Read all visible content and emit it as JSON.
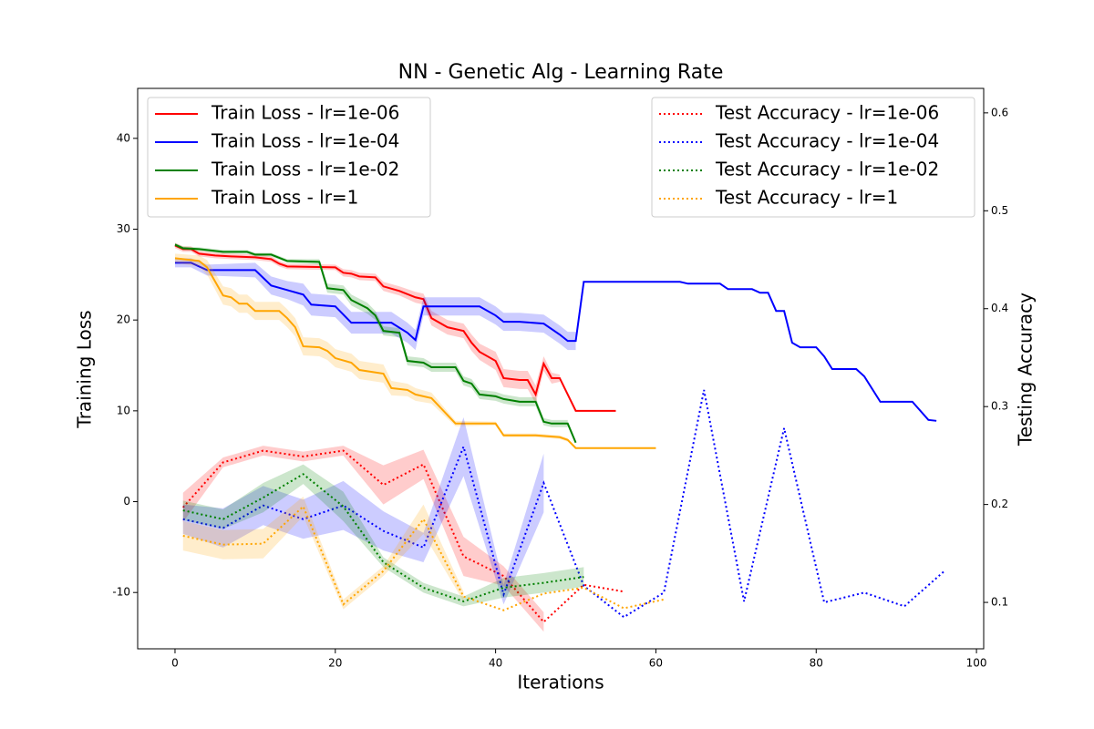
{
  "chart_data": {
    "type": "line",
    "title": "NN - Genetic Alg - Learning Rate",
    "xlabel": "Iterations",
    "ylabel": "Training Loss",
    "y2label": "Testing Accuracy",
    "xlim": [
      -4.66,
      100.9
    ],
    "ylim": [
      -16.2,
      45.5
    ],
    "y2lim": [
      0.0526,
      0.625
    ],
    "xticks": [
      0,
      20,
      40,
      60,
      80,
      100
    ],
    "yticks": [
      -10,
      0,
      10,
      20,
      30,
      40
    ],
    "y2ticks": [
      0.1,
      0.2,
      0.3,
      0.4,
      0.5,
      0.6
    ],
    "legend": [
      "upper left",
      "upper right"
    ],
    "series": [
      {
        "name": "Train Loss - lr=1e-06",
        "color": "red",
        "linestyle": "solid",
        "x": [
          0,
          1,
          2,
          3,
          5,
          7,
          10,
          12,
          13,
          14,
          20,
          21,
          22,
          23,
          25,
          26,
          28,
          30,
          31,
          32,
          34,
          36,
          37,
          38,
          40,
          41,
          43,
          44,
          45,
          46,
          47,
          48,
          50,
          55
        ],
        "values": [
          28.2,
          27.8,
          27.8,
          27.3,
          27.1,
          27.0,
          26.9,
          26.7,
          26.2,
          25.9,
          25.8,
          25.2,
          25.1,
          24.8,
          24.7,
          23.7,
          23.2,
          22.5,
          22.3,
          20.2,
          19.2,
          18.8,
          17.5,
          16.5,
          15.5,
          13.6,
          13.4,
          13.4,
          11.8,
          15.2,
          13.6,
          13.6,
          10.0,
          10.0
        ],
        "spread": [
          0.3,
          0.3,
          0.3,
          0.3,
          0.3,
          0.3,
          0.3,
          0.3,
          0.3,
          0.3,
          0.3,
          0.4,
          0.4,
          0.4,
          0.4,
          0.5,
          0.5,
          0.6,
          0.6,
          0.8,
          0.8,
          0.8,
          0.9,
          0.9,
          1.0,
          1.0,
          1.0,
          1.0,
          1.0,
          0.8,
          0.6,
          0.4,
          null,
          null
        ]
      },
      {
        "name": "Train Loss - lr=1e-04",
        "color": "blue",
        "linestyle": "solid",
        "x": [
          0,
          2,
          4,
          10,
          12,
          14,
          16,
          17,
          20,
          22,
          27,
          29,
          30,
          31,
          38,
          40,
          41,
          43,
          46,
          48,
          49,
          50,
          51,
          63,
          64,
          68,
          69,
          72,
          73,
          74,
          75,
          76,
          77,
          78,
          80,
          81,
          82,
          85,
          86,
          88,
          92,
          94,
          95
        ],
        "values": [
          26.3,
          26.3,
          25.5,
          25.5,
          23.8,
          23.3,
          22.8,
          21.7,
          21.5,
          19.7,
          19.7,
          18.6,
          17.8,
          21.5,
          21.5,
          20.5,
          19.8,
          19.8,
          19.6,
          18.4,
          17.7,
          17.7,
          24.2,
          24.2,
          24.0,
          24.0,
          23.4,
          23.4,
          23.0,
          23.0,
          21.0,
          21.0,
          17.5,
          17.0,
          17.0,
          16.0,
          14.6,
          14.6,
          13.8,
          11.0,
          11.0,
          9.0,
          8.9
        ],
        "spread": [
          0.5,
          0.5,
          0.6,
          0.8,
          1.0,
          1.0,
          1.2,
          1.2,
          1.2,
          1.2,
          1.2,
          1.1,
          1.1,
          1.0,
          1.0,
          1.0,
          1.0,
          1.0,
          1.0,
          1.0,
          1.0,
          1.0,
          null,
          null,
          null,
          null,
          null,
          null,
          null,
          null,
          null,
          null,
          null,
          null,
          null,
          null,
          null,
          null,
          null,
          null,
          null,
          null,
          null
        ]
      },
      {
        "name": "Train Loss - lr=1e-02",
        "color": "green",
        "linestyle": "solid",
        "x": [
          0,
          1,
          3,
          6,
          9,
          10,
          12,
          14,
          18,
          19,
          21,
          22,
          24,
          25,
          26,
          28,
          29,
          31,
          32,
          35,
          36,
          37,
          38,
          40,
          41,
          43,
          45,
          46,
          47,
          49,
          50
        ],
        "values": [
          28.3,
          27.9,
          27.8,
          27.5,
          27.5,
          27.2,
          27.2,
          26.5,
          26.4,
          23.5,
          23.3,
          22.2,
          21.3,
          20.5,
          18.8,
          18.6,
          15.5,
          15.3,
          14.8,
          14.8,
          13.3,
          13.0,
          11.8,
          11.6,
          11.3,
          11.0,
          11.0,
          8.8,
          8.6,
          8.6,
          6.5
        ],
        "spread": [
          0.2,
          0.2,
          0.2,
          0.2,
          0.2,
          0.2,
          0.2,
          0.2,
          0.3,
          0.5,
          0.5,
          0.6,
          0.6,
          0.5,
          0.5,
          0.5,
          0.5,
          0.5,
          0.5,
          0.5,
          0.5,
          0.5,
          0.5,
          0.5,
          0.5,
          0.5,
          0.5,
          0.4,
          0.4,
          0.4,
          null
        ]
      },
      {
        "name": "Train Loss - lr=1",
        "color": "orange",
        "linestyle": "solid",
        "x": [
          0,
          3,
          4,
          6,
          7,
          8,
          9,
          10,
          13,
          14,
          15,
          16,
          18,
          19,
          20,
          22,
          23,
          26,
          27,
          29,
          30,
          32,
          35,
          40,
          41,
          45,
          48,
          49,
          50,
          60
        ],
        "values": [
          26.8,
          26.5,
          25.8,
          22.7,
          22.5,
          21.8,
          21.8,
          21.0,
          21.0,
          20.2,
          19.2,
          17.1,
          17.0,
          16.6,
          15.8,
          15.3,
          14.5,
          14.1,
          12.5,
          12.3,
          11.8,
          11.4,
          8.6,
          8.6,
          7.3,
          7.3,
          7.1,
          6.8,
          5.9,
          5.9
        ],
        "spread": [
          0.5,
          0.6,
          0.8,
          1.0,
          1.0,
          1.0,
          1.0,
          1.0,
          1.0,
          1.0,
          1.0,
          1.0,
          1.0,
          1.0,
          1.0,
          1.0,
          1.0,
          1.0,
          0.8,
          0.7,
          0.7,
          0.6,
          0.3,
          0.2,
          0.2,
          0.2,
          0.2,
          0.2,
          null,
          null
        ]
      },
      {
        "name": "Test Accuracy - lr=1e-06",
        "color": "red",
        "linestyle": "dotted",
        "axis": "y2",
        "x": [
          1,
          6,
          11,
          16,
          21,
          26,
          31,
          36,
          41,
          46,
          51,
          56
        ],
        "values": [
          0.197,
          0.243,
          0.255,
          0.249,
          0.255,
          0.22,
          0.241,
          0.147,
          0.127,
          0.08,
          0.118,
          0.111
        ],
        "spread": [
          0.015,
          0.005,
          0.005,
          0.005,
          0.005,
          0.02,
          0.015,
          0.02,
          0.01,
          0.01,
          null,
          null
        ]
      },
      {
        "name": "Test Accuracy - lr=1e-04",
        "color": "blue",
        "linestyle": "dotted",
        "axis": "y2",
        "x": [
          1,
          6,
          11,
          16,
          21,
          26,
          31,
          36,
          41,
          46,
          51,
          56,
          61,
          66,
          71,
          76,
          81,
          86,
          91,
          96
        ],
        "values": [
          0.185,
          0.176,
          0.199,
          0.185,
          0.199,
          0.173,
          0.156,
          0.259,
          0.108,
          0.222,
          0.117,
          0.085,
          0.11,
          0.317,
          0.101,
          0.278,
          0.1,
          0.11,
          0.096,
          0.132
        ],
        "spread": [
          0.015,
          0.02,
          0.02,
          0.02,
          0.025,
          0.02,
          0.015,
          0.03,
          0.01,
          0.03,
          null,
          null,
          null,
          null,
          null,
          null,
          null,
          null,
          null,
          null
        ]
      },
      {
        "name": "Test Accuracy - lr=1e-02",
        "color": "green",
        "linestyle": "dotted",
        "axis": "y2",
        "x": [
          1,
          6,
          11,
          16,
          21,
          26,
          31,
          36,
          41,
          46,
          51
        ],
        "values": [
          0.194,
          0.185,
          0.207,
          0.231,
          0.198,
          0.141,
          0.115,
          0.101,
          0.115,
          0.12,
          0.126
        ],
        "spread": [
          0.01,
          0.01,
          0.015,
          0.01,
          0.015,
          0.005,
          0.005,
          0.005,
          0.01,
          0.01,
          0.01
        ]
      },
      {
        "name": "Test Accuracy - lr=1",
        "color": "orange",
        "linestyle": "dotted",
        "axis": "y2",
        "x": [
          1,
          6,
          11,
          16,
          21,
          26,
          31,
          36,
          41,
          46,
          51,
          56,
          61
        ],
        "values": [
          0.168,
          0.159,
          0.16,
          0.198,
          0.098,
          0.132,
          0.185,
          0.106,
          0.092,
          0.109,
          0.115,
          0.094,
          0.103
        ],
        "spread": [
          0.015,
          0.015,
          0.015,
          0.01,
          0.005,
          0.005,
          0.015,
          0.005,
          null,
          null,
          null,
          null,
          null
        ]
      }
    ]
  }
}
